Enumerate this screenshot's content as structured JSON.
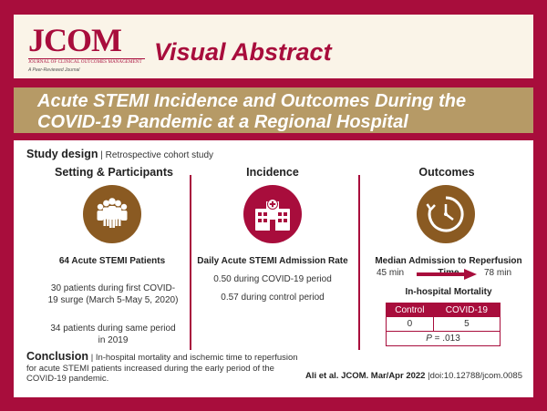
{
  "brand": {
    "logo": "JCOM",
    "logo_subtitle": "JOURNAL OF CLINICAL OUTCOMES MANAGEMENT",
    "tagline": "A Peer-Reviewed Journal",
    "header_title": "Visual Abstract"
  },
  "title": "Acute STEMI Incidence and Outcomes During the COVID-19 Pandemic at a Regional Hospital",
  "study_design": {
    "label": "Study design",
    "value": "Retrospective cohort study"
  },
  "setting": {
    "heading": "Setting & Participants",
    "icon": "people-group-icon",
    "count_label": "64 Acute STEMI Patients",
    "group1": "30 patients during first COVID-19 surge (March 5-May 5, 2020)",
    "group2": "34 patients during same period in 2019"
  },
  "incidence": {
    "heading": "Incidence",
    "icon": "hospital-icon",
    "metric": "Daily Acute STEMI Admission Rate",
    "covid": "0.50 during COVID-19 period",
    "control": "0.57 during control period"
  },
  "outcomes": {
    "heading": "Outcomes",
    "icon": "clock-icon",
    "metric": "Median Admission to Reperfusion Time",
    "from": "45 min",
    "to": "78 min",
    "mortality_heading": "In-hospital Mortality",
    "table": {
      "headers": [
        "Control",
        "COVID-19"
      ],
      "values": [
        "0",
        "5"
      ],
      "p_label": "P",
      "p_value": " = .013"
    }
  },
  "conclusion": {
    "label": "Conclusion",
    "text": "In-hospital mortality and ischemic time to reperfusion for acute STEMI patients increased during the early period of the COVID-19 pandemic."
  },
  "citation": {
    "authors": "Ali et al. JCOM. Mar/Apr 2022",
    "doi": "doi:10.12788/jcom.0085"
  },
  "colors": {
    "primary": "#a80d3c",
    "gold": "#b69a66",
    "cream": "#faf4e8",
    "circle_brown": "#8a5a22"
  }
}
